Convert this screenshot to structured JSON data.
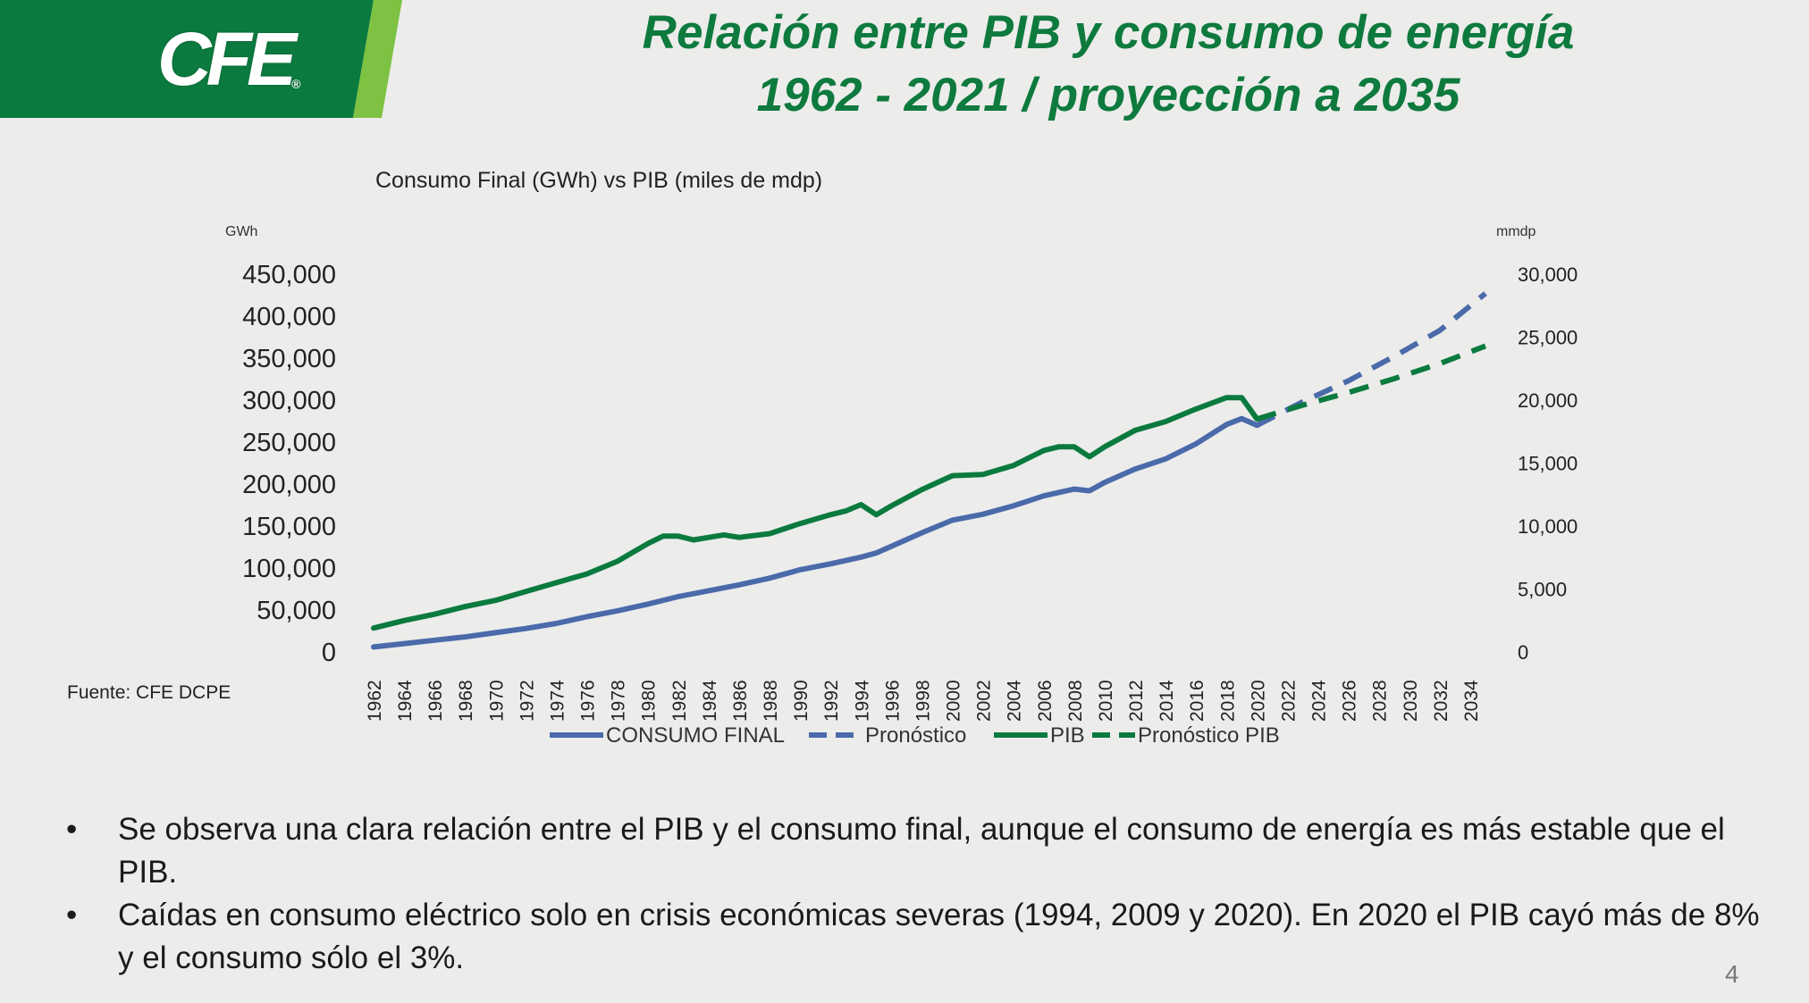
{
  "logo": {
    "text": "CFE",
    "mark": "®"
  },
  "colors": {
    "green_dark": "#0b7a3f",
    "green_light": "#7dc242",
    "blue": "#4a6aaa",
    "title_green": "#0e7a3e"
  },
  "title": {
    "line1": "Relación entre PIB y consumo de energía",
    "line2": "1962 - 2021 / proyección a 2035"
  },
  "source": "Fuente: CFE DCPE",
  "bullets": [
    "Se observa una clara relación entre el PIB y el consumo final, aunque el consumo de energía es más estable que el PIB.",
    "Caídas en consumo eléctrico solo en crisis económicas severas (1994, 2009 y 2020). En 2020 el PIB cayó más de 8% y el consumo sólo el 3%."
  ],
  "page_number": "4",
  "chart_data": {
    "type": "line",
    "title": "Consumo Final (GWh) vs PIB (miles de mdp)",
    "ylabel_left": "GWh",
    "ylabel_right": "mmdp",
    "ylim_left": [
      0,
      450000
    ],
    "ylim_right": [
      0,
      30000
    ],
    "yticks_left": [
      "0",
      "50,000",
      "100,000",
      "150,000",
      "200,000",
      "250,000",
      "300,000",
      "350,000",
      "400,000",
      "450,000"
    ],
    "yticks_right": [
      "0",
      "5,000",
      "10,000",
      "15,000",
      "20,000",
      "25,000",
      "30,000"
    ],
    "xlim": [
      1962,
      2035
    ],
    "xtick_labels": [
      "1962",
      "1964",
      "1966",
      "1968",
      "1970",
      "1972",
      "1974",
      "1976",
      "1978",
      "1980",
      "1982",
      "1984",
      "1986",
      "1988",
      "1990",
      "1992",
      "1994",
      "1996",
      "1998",
      "2000",
      "2002",
      "2004",
      "2006",
      "2008",
      "2010",
      "2012",
      "2014",
      "2016",
      "2018",
      "2020",
      "2022",
      "2024",
      "2026",
      "2028",
      "2030",
      "2032",
      "2034"
    ],
    "legend_position": "bottom",
    "series": [
      {
        "name": "CONSUMO FINAL",
        "axis": "left",
        "style": "solid",
        "color": "#4a6aaa",
        "x": [
          1962,
          1964,
          1966,
          1968,
          1970,
          1972,
          1974,
          1976,
          1978,
          1980,
          1982,
          1984,
          1986,
          1988,
          1990,
          1992,
          1994,
          1995,
          1996,
          1998,
          2000,
          2002,
          2004,
          2006,
          2008,
          2009,
          2010,
          2012,
          2014,
          2016,
          2018,
          2019,
          2020
        ],
        "y": [
          6000,
          10000,
          14000,
          18000,
          23000,
          28000,
          34000,
          42000,
          49000,
          57000,
          66000,
          73000,
          80000,
          88000,
          98000,
          105000,
          113000,
          118000,
          126000,
          142000,
          157000,
          164000,
          174000,
          186000,
          194000,
          192000,
          202000,
          218000,
          230000,
          248000,
          271000,
          278000,
          270000
        ]
      },
      {
        "name": "Pronóstico",
        "axis": "left",
        "style": "dashed",
        "color": "#4a6aaa",
        "x": [
          2020,
          2023,
          2026,
          2029,
          2032,
          2035
        ],
        "y": [
          270000,
          298000,
          323000,
          352000,
          383000,
          427000
        ]
      },
      {
        "name": "PIB",
        "axis": "right",
        "style": "solid",
        "color": "#0b7a3f",
        "x": [
          1962,
          1964,
          1966,
          1968,
          1970,
          1972,
          1974,
          1976,
          1978,
          1980,
          1981,
          1982,
          1983,
          1984,
          1985,
          1986,
          1988,
          1990,
          1992,
          1993,
          1994,
          1995,
          1996,
          1998,
          2000,
          2002,
          2004,
          2006,
          2007,
          2008,
          2009,
          2010,
          2012,
          2014,
          2016,
          2018,
          2019,
          2020
        ],
        "y": [
          1900,
          2500,
          3000,
          3600,
          4100,
          4800,
          5500,
          6200,
          7200,
          8600,
          9200,
          9200,
          8900,
          9100,
          9300,
          9100,
          9400,
          10200,
          10900,
          11200,
          11700,
          10900,
          11600,
          12900,
          14000,
          14100,
          14800,
          16000,
          16300,
          16300,
          15500,
          16300,
          17600,
          18300,
          19300,
          20200,
          20200,
          18500
        ]
      },
      {
        "name": "Pronóstico PIB",
        "axis": "right",
        "style": "dashed",
        "color": "#0b7a3f",
        "x": [
          2020,
          2023,
          2026,
          2029,
          2032,
          2035
        ],
        "y": [
          18500,
          19600,
          20600,
          21700,
          22900,
          24300
        ]
      }
    ]
  }
}
